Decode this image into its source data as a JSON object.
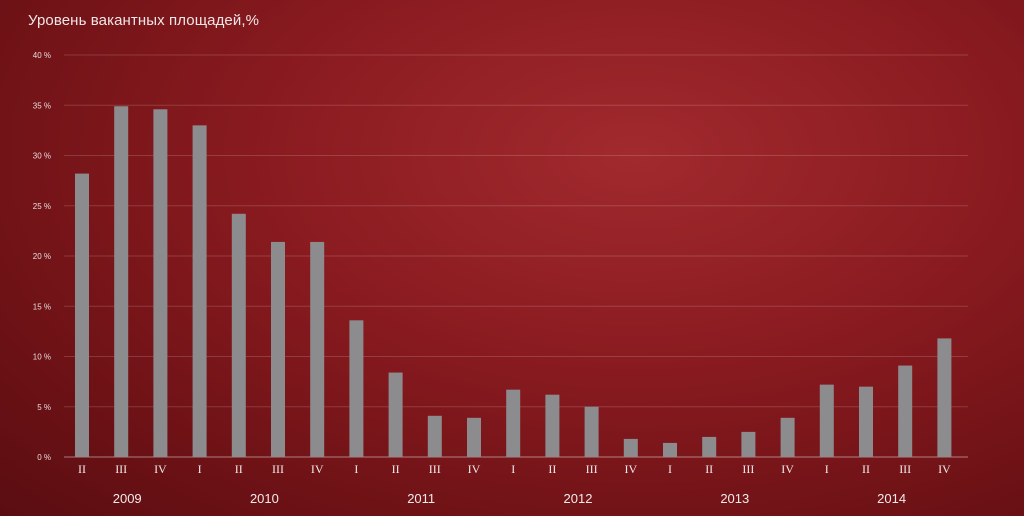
{
  "chart_data": {
    "type": "bar",
    "title": "Уровень вакантных площадей,%",
    "ylim": [
      0,
      40
    ],
    "y_ticks": [
      "0 %",
      "5 %",
      "10 %",
      "15 %",
      "20 %",
      "25 %",
      "30 %",
      "35 %",
      "40 %"
    ],
    "y_tick_values": [
      0,
      5,
      10,
      15,
      20,
      25,
      30,
      35,
      40
    ],
    "categories": [
      "II",
      "III",
      "IV",
      "I",
      "II",
      "III",
      "IV",
      "I",
      "II",
      "III",
      "IV",
      "I",
      "II",
      "III",
      "IV",
      "I",
      "II",
      "III",
      "IV",
      "I",
      "II",
      "III",
      "IV"
    ],
    "years": [
      {
        "label": "2009",
        "start": 0,
        "end": 2
      },
      {
        "label": "2010",
        "start": 3,
        "end": 6
      },
      {
        "label": "2011",
        "start": 7,
        "end": 10
      },
      {
        "label": "2012",
        "start": 11,
        "end": 14
      },
      {
        "label": "2013",
        "start": 15,
        "end": 18
      },
      {
        "label": "2014",
        "start": 19,
        "end": 22
      }
    ],
    "values": [
      28.2,
      34.9,
      34.6,
      33.0,
      24.2,
      21.4,
      21.4,
      13.6,
      8.4,
      4.1,
      3.9,
      6.7,
      6.2,
      5.0,
      1.8,
      1.4,
      2.0,
      2.5,
      3.9,
      7.2,
      7.0,
      9.1,
      11.8
    ],
    "grid": true,
    "legend": "none",
    "colors": {
      "bar": "#8c8c8e",
      "background": "#8a1b20"
    }
  }
}
